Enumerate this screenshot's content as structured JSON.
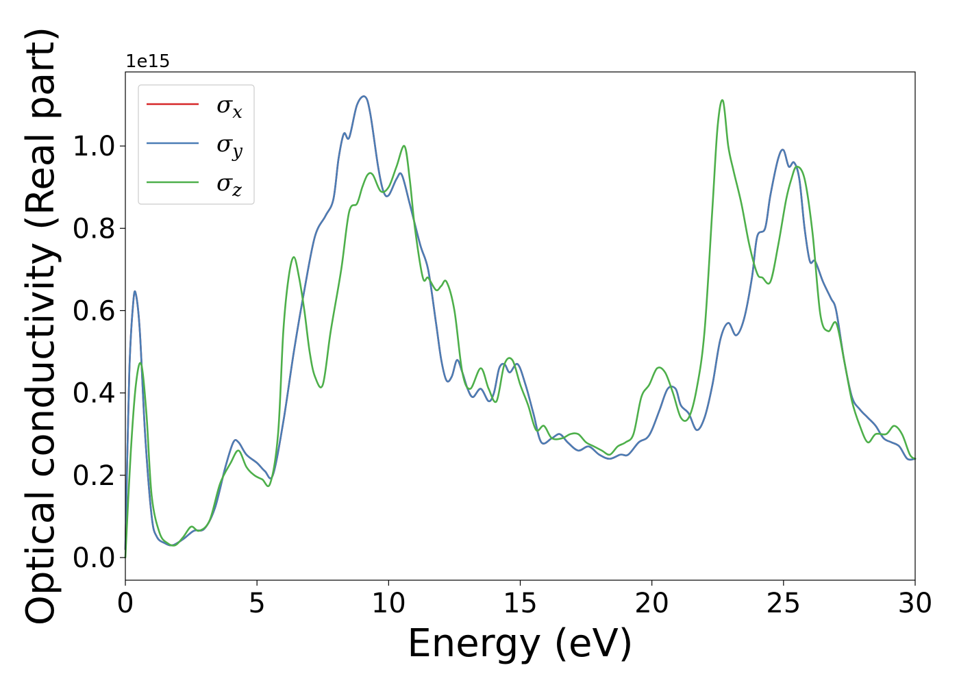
{
  "chart_data": {
    "type": "line",
    "title": "",
    "xlabel": "Energy (eV)",
    "ylabel": "Optical conductivity (Real part)",
    "y_offset_label": "1e15",
    "xlim": [
      0,
      30
    ],
    "ylim": [
      -0.055,
      1.18
    ],
    "xticks": [
      0,
      5,
      10,
      15,
      20,
      25,
      30
    ],
    "xtick_labels": [
      "0",
      "5",
      "10",
      "15",
      "20",
      "25",
      "30"
    ],
    "yticks": [
      0.0,
      0.2,
      0.4,
      0.6,
      0.8,
      1.0
    ],
    "ytick_labels": [
      "0.0",
      "0.2",
      "0.4",
      "0.6",
      "0.8",
      "1.0"
    ],
    "grid": false,
    "legend_position": "top-left",
    "series": [
      {
        "name": "σx",
        "color": "#d62728",
        "x": [
          0,
          0.15,
          0.3,
          0.4,
          0.55,
          0.75,
          1.0,
          1.2,
          1.5,
          1.8,
          2.2,
          2.6,
          3.0,
          3.4,
          3.8,
          4.1,
          4.3,
          4.6,
          5.0,
          5.3,
          5.6,
          6.0,
          6.4,
          6.8,
          7.2,
          7.6,
          7.9,
          8.1,
          8.3,
          8.5,
          8.8,
          9.1,
          9.3,
          9.6,
          9.8,
          10.0,
          10.3,
          10.5,
          10.8,
          11.2,
          11.5,
          11.8,
          12.0,
          12.2,
          12.4,
          12.6,
          12.8,
          13.0,
          13.2,
          13.5,
          13.8,
          14.0,
          14.2,
          14.4,
          14.6,
          14.9,
          15.2,
          15.5,
          15.8,
          16.2,
          16.5,
          16.8,
          17.2,
          17.6,
          18.0,
          18.4,
          18.8,
          19.1,
          19.5,
          19.8,
          20.0,
          20.3,
          20.6,
          20.9,
          21.1,
          21.4,
          21.7,
          22.0,
          22.3,
          22.6,
          22.9,
          23.2,
          23.5,
          23.8,
          24.0,
          24.3,
          24.5,
          24.8,
          25.0,
          25.2,
          25.4,
          25.6,
          25.8,
          26.0,
          26.2,
          26.5,
          26.8,
          27.0,
          27.3,
          27.6,
          27.9,
          28.2,
          28.5,
          28.8,
          29.1,
          29.4,
          29.7,
          30.0
        ],
        "y": [
          0.02,
          0.45,
          0.62,
          0.64,
          0.55,
          0.3,
          0.1,
          0.05,
          0.035,
          0.03,
          0.045,
          0.065,
          0.07,
          0.12,
          0.22,
          0.28,
          0.28,
          0.25,
          0.23,
          0.21,
          0.2,
          0.33,
          0.5,
          0.65,
          0.78,
          0.83,
          0.87,
          0.97,
          1.03,
          1.02,
          1.1,
          1.12,
          1.08,
          0.95,
          0.89,
          0.88,
          0.92,
          0.93,
          0.86,
          0.76,
          0.7,
          0.57,
          0.48,
          0.43,
          0.44,
          0.48,
          0.45,
          0.41,
          0.39,
          0.41,
          0.38,
          0.4,
          0.46,
          0.47,
          0.45,
          0.47,
          0.42,
          0.35,
          0.28,
          0.29,
          0.3,
          0.28,
          0.26,
          0.27,
          0.25,
          0.24,
          0.25,
          0.25,
          0.28,
          0.29,
          0.31,
          0.36,
          0.41,
          0.41,
          0.37,
          0.35,
          0.31,
          0.34,
          0.42,
          0.53,
          0.57,
          0.54,
          0.58,
          0.68,
          0.78,
          0.8,
          0.88,
          0.97,
          0.99,
          0.95,
          0.96,
          0.92,
          0.8,
          0.72,
          0.72,
          0.67,
          0.63,
          0.6,
          0.48,
          0.39,
          0.36,
          0.34,
          0.32,
          0.29,
          0.28,
          0.27,
          0.24,
          0.24
        ]
      },
      {
        "name": "σy",
        "color": "#4a7db5",
        "x": [
          0,
          0.15,
          0.3,
          0.4,
          0.55,
          0.75,
          1.0,
          1.2,
          1.5,
          1.8,
          2.2,
          2.6,
          3.0,
          3.4,
          3.8,
          4.1,
          4.3,
          4.6,
          5.0,
          5.3,
          5.6,
          6.0,
          6.4,
          6.8,
          7.2,
          7.6,
          7.9,
          8.1,
          8.3,
          8.5,
          8.8,
          9.1,
          9.3,
          9.6,
          9.8,
          10.0,
          10.3,
          10.5,
          10.8,
          11.2,
          11.5,
          11.8,
          12.0,
          12.2,
          12.4,
          12.6,
          12.8,
          13.0,
          13.2,
          13.5,
          13.8,
          14.0,
          14.2,
          14.4,
          14.6,
          14.9,
          15.2,
          15.5,
          15.8,
          16.2,
          16.5,
          16.8,
          17.2,
          17.6,
          18.0,
          18.4,
          18.8,
          19.1,
          19.5,
          19.8,
          20.0,
          20.3,
          20.6,
          20.9,
          21.1,
          21.4,
          21.7,
          22.0,
          22.3,
          22.6,
          22.9,
          23.2,
          23.5,
          23.8,
          24.0,
          24.3,
          24.5,
          24.8,
          25.0,
          25.2,
          25.4,
          25.6,
          25.8,
          26.0,
          26.2,
          26.5,
          26.8,
          27.0,
          27.3,
          27.6,
          27.9,
          28.2,
          28.5,
          28.8,
          29.1,
          29.4,
          29.7,
          30.0
        ],
        "y": [
          0.02,
          0.45,
          0.62,
          0.64,
          0.55,
          0.3,
          0.1,
          0.05,
          0.035,
          0.03,
          0.045,
          0.065,
          0.07,
          0.12,
          0.22,
          0.28,
          0.28,
          0.25,
          0.23,
          0.21,
          0.2,
          0.33,
          0.5,
          0.65,
          0.78,
          0.83,
          0.87,
          0.97,
          1.03,
          1.02,
          1.1,
          1.12,
          1.08,
          0.95,
          0.89,
          0.88,
          0.92,
          0.93,
          0.86,
          0.76,
          0.7,
          0.57,
          0.48,
          0.43,
          0.44,
          0.48,
          0.45,
          0.41,
          0.39,
          0.41,
          0.38,
          0.4,
          0.46,
          0.47,
          0.45,
          0.47,
          0.42,
          0.35,
          0.28,
          0.29,
          0.3,
          0.28,
          0.26,
          0.27,
          0.25,
          0.24,
          0.25,
          0.25,
          0.28,
          0.29,
          0.31,
          0.36,
          0.41,
          0.41,
          0.37,
          0.35,
          0.31,
          0.34,
          0.42,
          0.53,
          0.57,
          0.54,
          0.58,
          0.68,
          0.78,
          0.8,
          0.88,
          0.97,
          0.99,
          0.95,
          0.96,
          0.92,
          0.8,
          0.72,
          0.72,
          0.67,
          0.63,
          0.6,
          0.48,
          0.39,
          0.36,
          0.34,
          0.32,
          0.29,
          0.28,
          0.27,
          0.24,
          0.24
        ]
      },
      {
        "name": "σz",
        "color": "#4daf4a",
        "x": [
          0,
          0.2,
          0.4,
          0.6,
          0.8,
          1.0,
          1.3,
          1.6,
          1.9,
          2.2,
          2.5,
          2.8,
          3.2,
          3.6,
          4.0,
          4.3,
          4.6,
          4.9,
          5.2,
          5.5,
          5.8,
          6.0,
          6.2,
          6.4,
          6.6,
          6.8,
          7.0,
          7.2,
          7.5,
          7.8,
          8.2,
          8.5,
          8.8,
          9.0,
          9.2,
          9.4,
          9.7,
          10.0,
          10.3,
          10.6,
          10.8,
          11.0,
          11.3,
          11.5,
          11.8,
          12.0,
          12.2,
          12.5,
          12.8,
          13.1,
          13.5,
          13.8,
          14.1,
          14.4,
          14.7,
          15.0,
          15.3,
          15.6,
          15.9,
          16.2,
          16.6,
          16.9,
          17.2,
          17.5,
          17.8,
          18.1,
          18.4,
          18.7,
          19.0,
          19.3,
          19.6,
          19.9,
          20.2,
          20.5,
          20.8,
          21.1,
          21.4,
          21.7,
          22.0,
          22.3,
          22.5,
          22.7,
          22.9,
          23.1,
          23.4,
          23.7,
          24.0,
          24.2,
          24.5,
          24.8,
          25.1,
          25.3,
          25.5,
          25.8,
          26.1,
          26.4,
          26.7,
          27.0,
          27.3,
          27.6,
          27.9,
          28.2,
          28.5,
          28.9,
          29.2,
          29.5,
          29.8,
          30.0
        ],
        "y": [
          0.0,
          0.25,
          0.42,
          0.47,
          0.35,
          0.15,
          0.06,
          0.035,
          0.03,
          0.05,
          0.075,
          0.065,
          0.09,
          0.18,
          0.23,
          0.26,
          0.22,
          0.2,
          0.19,
          0.18,
          0.3,
          0.55,
          0.68,
          0.73,
          0.68,
          0.6,
          0.5,
          0.44,
          0.42,
          0.55,
          0.7,
          0.84,
          0.86,
          0.9,
          0.93,
          0.93,
          0.89,
          0.9,
          0.95,
          1.0,
          0.92,
          0.8,
          0.68,
          0.68,
          0.65,
          0.66,
          0.67,
          0.6,
          0.45,
          0.41,
          0.46,
          0.41,
          0.38,
          0.47,
          0.48,
          0.42,
          0.37,
          0.31,
          0.32,
          0.29,
          0.29,
          0.3,
          0.3,
          0.28,
          0.27,
          0.26,
          0.25,
          0.27,
          0.28,
          0.3,
          0.39,
          0.42,
          0.46,
          0.45,
          0.4,
          0.34,
          0.34,
          0.41,
          0.55,
          0.85,
          1.05,
          1.11,
          1.0,
          0.94,
          0.86,
          0.76,
          0.69,
          0.68,
          0.67,
          0.76,
          0.87,
          0.92,
          0.95,
          0.92,
          0.79,
          0.59,
          0.55,
          0.57,
          0.48,
          0.38,
          0.32,
          0.28,
          0.3,
          0.3,
          0.32,
          0.3,
          0.25,
          0.24
        ]
      }
    ]
  }
}
